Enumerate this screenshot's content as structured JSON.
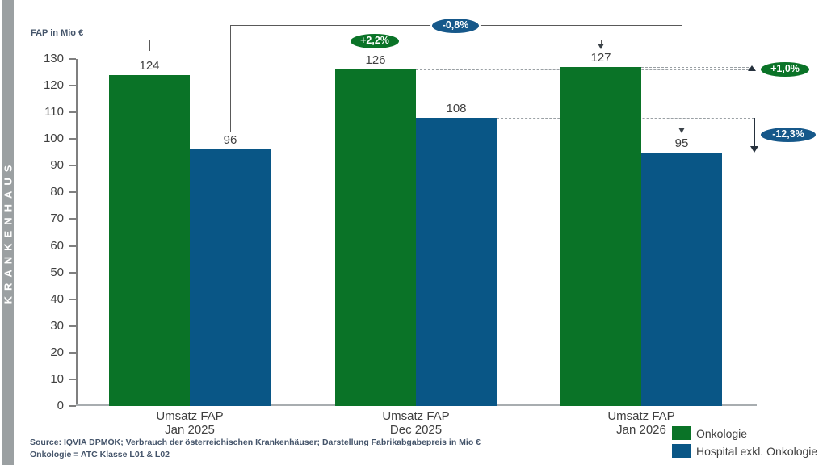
{
  "sidebar": {
    "label": "KRANKENHAUS",
    "bg": "#9ba0a2"
  },
  "chart_data": {
    "type": "bar",
    "title": "",
    "ylabel": "FAP in Mio €",
    "ylim": [
      0,
      130
    ],
    "ytick_step": 10,
    "grid": false,
    "categories": [
      [
        "Umsatz FAP",
        "Jan 2025"
      ],
      [
        "Umsatz FAP",
        "Dec 2025"
      ],
      [
        "Umsatz FAP",
        "Jan 2026"
      ]
    ],
    "series": [
      {
        "name": "Onkologie",
        "color": "#0a7327",
        "values": [
          124,
          126,
          127
        ]
      },
      {
        "name": "Hospital exkl. Onkologie",
        "color": "#095686",
        "values": [
          96,
          108,
          95
        ]
      }
    ],
    "annotations": [
      {
        "label": "+2,2%",
        "color": "#0a7327",
        "series": "Onkologie",
        "from": "Jan 2025",
        "to": "Jan 2026"
      },
      {
        "label": "-0,8%",
        "color": "#16588a",
        "series": "Hospital exkl. Onkologie",
        "from": "Jan 2025",
        "to": "Jan 2026"
      },
      {
        "label": "+1,0%",
        "color": "#0a7327",
        "series": "Onkologie",
        "from": "Dec 2025",
        "to": "Jan 2026"
      },
      {
        "label": "-12,3%",
        "color": "#16588a",
        "series": "Hospital exkl. Onkologie",
        "from": "Dec 2025",
        "to": "Jan 2026"
      }
    ],
    "legend": [
      "Onkologie",
      "Hospital exkl. Onkologie"
    ],
    "legend_position": "bottom-right"
  },
  "footer": {
    "source_line1": "Source: IQVIA DPMÖK; Verbrauch der österreichischen Krankenhäuser; Darstellung Fabrikabgabepreis in Mio €",
    "source_line2": "Onkologie = ATC Klasse L01 & L02"
  }
}
